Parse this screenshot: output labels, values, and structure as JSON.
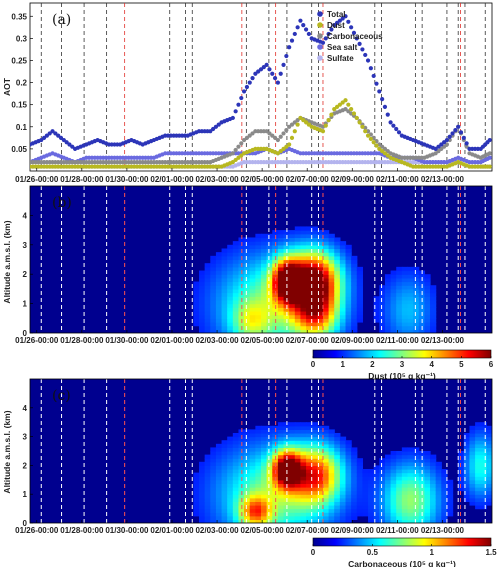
{
  "chart_data": [
    {
      "panel_label": "(a)",
      "type": "scatter",
      "ylabel": "AOT",
      "ylim": [
        0,
        0.38
      ],
      "yticks": [
        "0.05",
        "0.1",
        "0.15",
        "0.2",
        "0.25",
        "0.3",
        "0.35"
      ],
      "xlim_days": [
        0,
        20.5
      ],
      "x_tick_labels": [
        "01/26-00:00",
        "01/28-00:00",
        "01/30-00:00",
        "02/01-00:00",
        "02/03-00:00",
        "02/05-00:00",
        "02/07-00:00",
        "02/09-00:00",
        "02/11-00:00",
        "02/13-00:00"
      ],
      "legend_position": "top-right",
      "series": [
        {
          "name": "Total",
          "color": "#2c35b8",
          "x": [
            0.0,
            0.5,
            1.0,
            1.5,
            2.0,
            2.5,
            3.0,
            3.5,
            4.0,
            4.5,
            5.0,
            5.5,
            6.0,
            6.5,
            7.0,
            7.5,
            8.0,
            8.5,
            9.0,
            9.5,
            10.0,
            10.5,
            11.0,
            11.5,
            12.0,
            12.5,
            13.0,
            13.5,
            14.0,
            14.5,
            15.0,
            15.5,
            16.0,
            16.5,
            17.0,
            17.5,
            18.0,
            18.5,
            19.0,
            19.5,
            20.0,
            20.4
          ],
          "y": [
            0.06,
            0.07,
            0.09,
            0.07,
            0.05,
            0.06,
            0.07,
            0.06,
            0.06,
            0.07,
            0.06,
            0.07,
            0.08,
            0.08,
            0.08,
            0.09,
            0.09,
            0.11,
            0.12,
            0.18,
            0.22,
            0.24,
            0.2,
            0.28,
            0.34,
            0.3,
            0.29,
            0.33,
            0.35,
            0.3,
            0.25,
            0.18,
            0.11,
            0.08,
            0.07,
            0.06,
            0.05,
            0.07,
            0.1,
            0.05,
            0.05,
            0.07
          ]
        },
        {
          "name": "Dust",
          "color": "#b8b820",
          "x": [
            0.0,
            0.5,
            1.0,
            1.5,
            2.0,
            2.5,
            3.0,
            3.5,
            4.0,
            4.5,
            5.0,
            5.5,
            6.0,
            6.5,
            7.0,
            7.5,
            8.0,
            8.5,
            9.0,
            9.5,
            10.0,
            10.5,
            11.0,
            11.5,
            12.0,
            12.5,
            13.0,
            13.5,
            14.0,
            14.5,
            15.0,
            15.5,
            16.0,
            16.5,
            17.0,
            17.5,
            18.0,
            18.5,
            19.0,
            19.5,
            20.0,
            20.4
          ],
          "y": [
            0.01,
            0.01,
            0.01,
            0.01,
            0.01,
            0.01,
            0.01,
            0.01,
            0.01,
            0.01,
            0.01,
            0.01,
            0.01,
            0.01,
            0.01,
            0.01,
            0.01,
            0.01,
            0.02,
            0.04,
            0.05,
            0.05,
            0.04,
            0.06,
            0.12,
            0.1,
            0.09,
            0.14,
            0.16,
            0.12,
            0.08,
            0.05,
            0.03,
            0.02,
            0.01,
            0.01,
            0.01,
            0.01,
            0.02,
            0.01,
            0.01,
            0.01
          ]
        },
        {
          "name": "Carbonaceous",
          "color": "#8a8a8a",
          "x": [
            0.0,
            0.5,
            1.0,
            1.5,
            2.0,
            2.5,
            3.0,
            3.5,
            4.0,
            4.5,
            5.0,
            5.5,
            6.0,
            6.5,
            7.0,
            7.5,
            8.0,
            8.5,
            9.0,
            9.5,
            10.0,
            10.5,
            11.0,
            11.5,
            12.0,
            12.5,
            13.0,
            13.5,
            14.0,
            14.5,
            15.0,
            15.5,
            16.0,
            16.5,
            17.0,
            17.5,
            18.0,
            18.5,
            19.0,
            19.5,
            20.0,
            20.4
          ],
          "y": [
            0.02,
            0.02,
            0.02,
            0.02,
            0.02,
            0.02,
            0.02,
            0.02,
            0.02,
            0.02,
            0.02,
            0.02,
            0.02,
            0.02,
            0.02,
            0.02,
            0.02,
            0.03,
            0.04,
            0.07,
            0.09,
            0.09,
            0.07,
            0.1,
            0.12,
            0.11,
            0.1,
            0.13,
            0.14,
            0.12,
            0.09,
            0.06,
            0.04,
            0.03,
            0.03,
            0.03,
            0.04,
            0.06,
            0.1,
            0.04,
            0.03,
            0.04
          ]
        },
        {
          "name": "Sea salt",
          "color": "#6a6ae0",
          "x": [
            0.0,
            0.5,
            1.0,
            1.5,
            2.0,
            2.5,
            3.0,
            3.5,
            4.0,
            4.5,
            5.0,
            5.5,
            6.0,
            6.5,
            7.0,
            7.5,
            8.0,
            8.5,
            9.0,
            9.5,
            10.0,
            10.5,
            11.0,
            11.5,
            12.0,
            12.5,
            13.0,
            13.5,
            14.0,
            14.5,
            15.0,
            15.5,
            16.0,
            16.5,
            17.0,
            17.5,
            18.0,
            18.5,
            19.0,
            19.5,
            20.0,
            20.4
          ],
          "y": [
            0.02,
            0.03,
            0.04,
            0.03,
            0.02,
            0.03,
            0.03,
            0.03,
            0.03,
            0.03,
            0.03,
            0.03,
            0.04,
            0.04,
            0.04,
            0.04,
            0.04,
            0.04,
            0.04,
            0.04,
            0.04,
            0.05,
            0.04,
            0.05,
            0.04,
            0.04,
            0.04,
            0.04,
            0.04,
            0.04,
            0.04,
            0.04,
            0.03,
            0.03,
            0.03,
            0.02,
            0.02,
            0.02,
            0.03,
            0.02,
            0.02,
            0.03
          ]
        },
        {
          "name": "Sulfate",
          "color": "#b4b4ee",
          "x": [
            0.0,
            0.5,
            1.0,
            1.5,
            2.0,
            2.5,
            3.0,
            3.5,
            4.0,
            4.5,
            5.0,
            5.5,
            6.0,
            6.5,
            7.0,
            7.5,
            8.0,
            8.5,
            9.0,
            9.5,
            10.0,
            10.5,
            11.0,
            11.5,
            12.0,
            12.5,
            13.0,
            13.5,
            14.0,
            14.5,
            15.0,
            15.5,
            16.0,
            16.5,
            17.0,
            17.5,
            18.0,
            18.5,
            19.0,
            19.5,
            20.0,
            20.4
          ],
          "y": [
            0.01,
            0.01,
            0.01,
            0.01,
            0.01,
            0.01,
            0.01,
            0.01,
            0.01,
            0.01,
            0.01,
            0.01,
            0.01,
            0.01,
            0.01,
            0.01,
            0.01,
            0.01,
            0.01,
            0.02,
            0.02,
            0.02,
            0.02,
            0.02,
            0.02,
            0.02,
            0.02,
            0.02,
            0.02,
            0.02,
            0.02,
            0.02,
            0.02,
            0.02,
            0.02,
            0.02,
            0.02,
            0.02,
            0.02,
            0.01,
            0.01,
            0.01
          ]
        }
      ],
      "vlines_black_days": [
        0.5,
        1.4,
        2.4,
        3.4,
        6.2,
        6.9,
        7.2,
        9.6,
        10.6,
        11.4,
        12.5,
        12.8,
        15.3,
        15.6,
        17.1,
        17.4,
        18.5,
        19.0,
        19.3,
        20.2
      ],
      "vlines_red_days": [
        4.2,
        9.4,
        10.9,
        13.0,
        19.1
      ]
    },
    {
      "panel_label": "(b)",
      "type": "heatmap",
      "ylabel": "Altitude a.m.s.l. (km)",
      "ylim": [
        0,
        5
      ],
      "yticks": [
        "0",
        "1",
        "2",
        "3",
        "4"
      ],
      "xlim_days": [
        0,
        20.5
      ],
      "x_tick_labels": [
        "01/26-00:00",
        "01/28-00:00",
        "01/30-00:00",
        "02/01-00:00",
        "02/03-00:00",
        "02/05-00:00",
        "02/07-00:00",
        "02/09-00:00",
        "02/11-00:00",
        "02/13-00:00"
      ],
      "colorbar_label": "Dust (10⁵ g kg⁻¹)",
      "colorbar_ticks": [
        "0",
        "1",
        "2",
        "3",
        "4",
        "5",
        "6"
      ],
      "clim": [
        0,
        6
      ],
      "blobs": [
        {
          "x_day": 10.8,
          "z_km": 1.0,
          "sx": 1.8,
          "sz": 1.2,
          "v": 2.6
        },
        {
          "x_day": 11.4,
          "z_km": 1.8,
          "sx": 0.45,
          "sz": 0.5,
          "v": 4.8
        },
        {
          "x_day": 12.6,
          "z_km": 1.8,
          "sx": 0.8,
          "sz": 0.7,
          "v": 5.6
        },
        {
          "x_day": 12.7,
          "z_km": 0.6,
          "sx": 0.7,
          "sz": 0.6,
          "v": 3.0
        },
        {
          "x_day": 9.8,
          "z_km": 0.4,
          "sx": 0.6,
          "sz": 0.5,
          "v": 1.6
        },
        {
          "x_day": 16.8,
          "z_km": 0.8,
          "sx": 0.8,
          "sz": 0.9,
          "v": 1.4
        }
      ],
      "vlines_white_days": [
        0.5,
        1.4,
        2.4,
        3.4,
        6.2,
        6.9,
        7.2,
        9.6,
        10.6,
        11.4,
        12.5,
        12.8,
        15.3,
        15.6,
        17.1,
        17.4,
        18.5,
        19.0,
        19.3,
        20.2
      ],
      "vlines_red_days": [
        4.2,
        9.4,
        10.9,
        13.0,
        19.1
      ]
    },
    {
      "panel_label": "(c)",
      "type": "heatmap",
      "ylabel": "Altitude a.m.s.l. (km)",
      "ylim": [
        0,
        5
      ],
      "yticks": [
        "0",
        "1",
        "2",
        "3",
        "4"
      ],
      "xlim_days": [
        0,
        20.5
      ],
      "x_tick_labels": [
        "01/26-00:00",
        "01/28-00:00",
        "01/30-00:00",
        "02/01-00:00",
        "02/03-00:00",
        "02/05-00:00",
        "02/07-00:00",
        "02/09-00:00",
        "02/11-00:00",
        "02/13-00:00"
      ],
      "colorbar_label": "Carbonaceous (10⁵ g kg⁻¹)",
      "colorbar_ticks": [
        "0",
        "0.5",
        "1",
        "1.5"
      ],
      "clim": [
        0,
        1.5
      ],
      "blobs": [
        {
          "x_day": 10.8,
          "z_km": 1.0,
          "sx": 1.8,
          "sz": 1.2,
          "v": 0.65
        },
        {
          "x_day": 11.4,
          "z_km": 1.9,
          "sx": 0.45,
          "sz": 0.45,
          "v": 1.25
        },
        {
          "x_day": 12.7,
          "z_km": 1.7,
          "sx": 0.8,
          "sz": 0.7,
          "v": 1.0
        },
        {
          "x_day": 10.0,
          "z_km": 0.4,
          "sx": 0.5,
          "sz": 0.4,
          "v": 0.75
        },
        {
          "x_day": 16.9,
          "z_km": 0.8,
          "sx": 0.9,
          "sz": 0.9,
          "v": 0.7
        },
        {
          "x_day": 20.0,
          "z_km": 2.0,
          "sx": 0.5,
          "sz": 0.8,
          "v": 0.5
        }
      ],
      "vlines_white_days": [
        0.5,
        1.4,
        2.4,
        3.4,
        6.2,
        6.9,
        7.2,
        9.6,
        10.6,
        11.4,
        12.5,
        12.8,
        15.3,
        15.6,
        17.1,
        17.4,
        18.5,
        19.0,
        19.3,
        20.2
      ],
      "vlines_red_days": [
        4.2,
        9.4,
        10.9,
        13.0,
        19.1
      ]
    }
  ]
}
